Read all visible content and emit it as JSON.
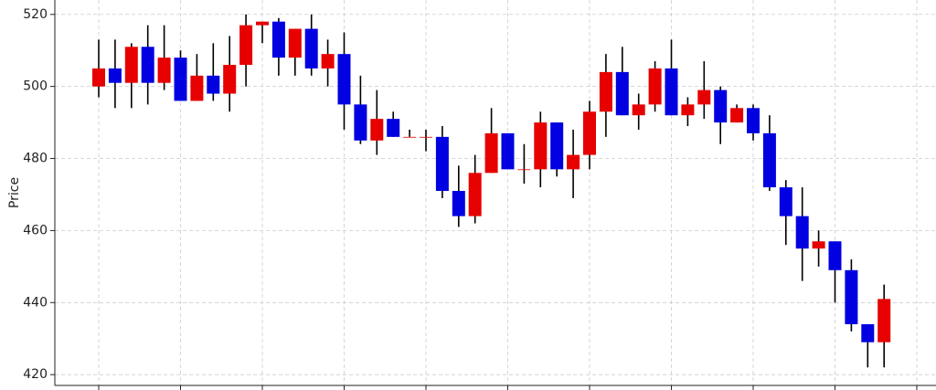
{
  "chart_data": {
    "type": "candlestick",
    "y_label": "Price",
    "open": [
      500,
      505,
      501,
      511,
      501,
      508,
      496,
      503,
      498,
      506,
      517,
      518,
      508,
      516,
      505,
      509,
      495,
      485,
      491,
      486,
      486,
      486,
      471,
      464,
      476,
      487,
      477,
      477,
      490,
      477,
      481,
      493,
      504,
      492,
      495,
      505,
      492,
      495,
      499,
      490,
      494,
      487,
      472,
      464,
      455,
      457,
      449,
      434,
      429
    ],
    "high": [
      513,
      513,
      512,
      517,
      517,
      510,
      509,
      512,
      514,
      520,
      518,
      519,
      516,
      520,
      513,
      515,
      503,
      499,
      493,
      488,
      488,
      489,
      478,
      481,
      494,
      487,
      484,
      493,
      490,
      488,
      496,
      509,
      511,
      498,
      507,
      513,
      497,
      507,
      500,
      495,
      495,
      492,
      474,
      472,
      460,
      457,
      452,
      434,
      445
    ],
    "low": [
      497,
      494,
      494,
      495,
      499,
      496,
      496,
      496,
      493,
      500,
      512,
      503,
      503,
      503,
      500,
      488,
      484,
      481,
      486,
      486,
      482,
      469,
      461,
      462,
      476,
      477,
      473,
      472,
      475,
      469,
      477,
      486,
      492,
      488,
      493,
      492,
      489,
      491,
      484,
      490,
      485,
      471,
      456,
      446,
      450,
      440,
      432,
      422,
      422
    ],
    "close": [
      505,
      501,
      511,
      501,
      508,
      496,
      503,
      498,
      506,
      517,
      518,
      508,
      516,
      505,
      509,
      495,
      485,
      491,
      486,
      486,
      486,
      471,
      464,
      476,
      487,
      477,
      477,
      490,
      477,
      481,
      493,
      504,
      492,
      495,
      505,
      492,
      495,
      499,
      490,
      494,
      487,
      472,
      464,
      455,
      457,
      449,
      434,
      429,
      441
    ],
    "up_color": "#e60000",
    "down_color": "#0000e0",
    "ylim": [
      417,
      524
    ],
    "yticks": [
      420,
      440,
      460,
      480,
      500,
      520
    ],
    "grid": true
  }
}
